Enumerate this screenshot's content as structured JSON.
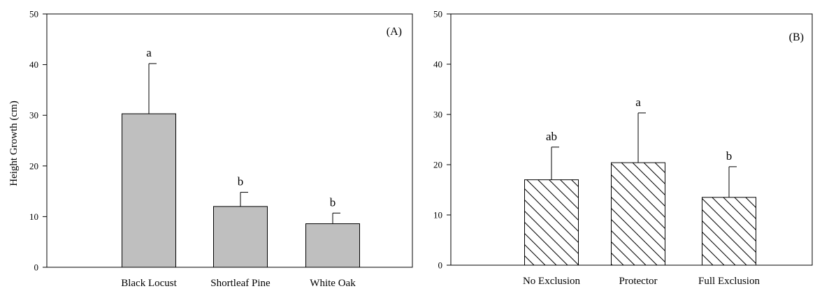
{
  "chart_data": [
    {
      "type": "bar",
      "panel_label": "(A)",
      "categories": [
        "Black Locust",
        "Shortleaf Pine",
        "White Oak"
      ],
      "values": [
        30.3,
        12.0,
        8.6
      ],
      "error_upper": [
        40.2,
        14.8,
        10.7
      ],
      "significance": [
        "a",
        "b",
        "b"
      ],
      "bar_fill": "#bfbfbf",
      "hatched": false,
      "ylabel": "Height Growth (cm)",
      "xlabel": "",
      "title": "",
      "ylim": [
        0,
        50
      ],
      "yticks": [
        0,
        10,
        20,
        30,
        40,
        50
      ],
      "grid": false
    },
    {
      "type": "bar",
      "panel_label": "(B)",
      "categories": [
        "No Exclusion",
        "Protector",
        "Full Exclusion"
      ],
      "values": [
        17.0,
        20.4,
        13.5
      ],
      "error_upper": [
        23.5,
        30.3,
        19.6
      ],
      "significance": [
        "ab",
        "a",
        "b"
      ],
      "bar_fill": "#ffffff",
      "hatched": true,
      "ylabel": "",
      "xlabel": "",
      "title": "",
      "ylim": [
        0,
        50
      ],
      "yticks": [
        0,
        10,
        20,
        30,
        40,
        50
      ],
      "grid": false
    }
  ]
}
